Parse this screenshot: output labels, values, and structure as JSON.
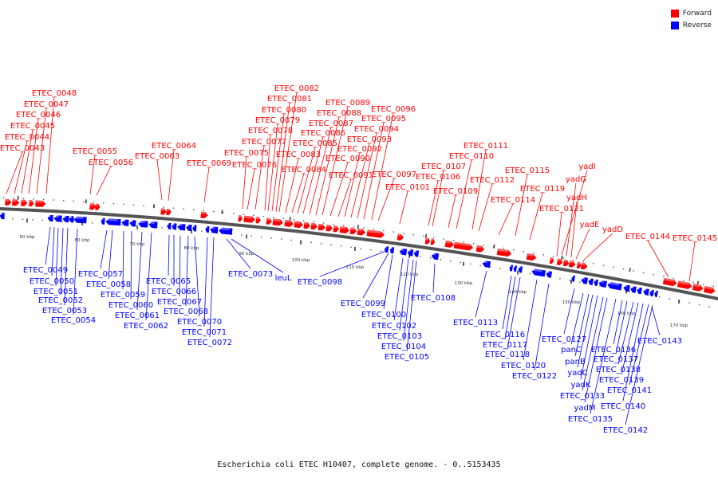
{
  "legend": {
    "forward_label": "Forward",
    "reverse_label": "Reverse",
    "forward_color": "#ff0000",
    "reverse_color": "#0000ff"
  },
  "caption": "Escherichia coli ETEC H10407, complete genome. - 0..5153435",
  "scale_marks": [
    {
      "label": "50 kbp"
    },
    {
      "label": "60 kbp"
    },
    {
      "label": "70 kbp"
    },
    {
      "label": "80 kbp"
    },
    {
      "label": "90 kbp"
    },
    {
      "label": "100 kbp"
    },
    {
      "label": "110 kbp"
    },
    {
      "label": "120 kbp"
    },
    {
      "label": "130 kbp"
    },
    {
      "label": "140 kbp"
    },
    {
      "label": "150 kbp"
    },
    {
      "label": "160 kbp"
    },
    {
      "label": "170 kbp"
    }
  ],
  "genes": [
    {
      "name": "ETEC_0043",
      "strand": "forward"
    },
    {
      "name": "ETEC_0044",
      "strand": "forward"
    },
    {
      "name": "ETEC_0045",
      "strand": "forward"
    },
    {
      "name": "ETEC_0046",
      "strand": "forward"
    },
    {
      "name": "ETEC_0047",
      "strand": "forward"
    },
    {
      "name": "ETEC_0048",
      "strand": "forward"
    },
    {
      "name": "ETEC_0049",
      "strand": "reverse"
    },
    {
      "name": "ETEC_0050",
      "strand": "reverse"
    },
    {
      "name": "ETEC_0051",
      "strand": "reverse"
    },
    {
      "name": "ETEC_0052",
      "strand": "reverse"
    },
    {
      "name": "ETEC_0053",
      "strand": "reverse"
    },
    {
      "name": "ETEC_0054",
      "strand": "reverse"
    },
    {
      "name": "ETEC_0055",
      "strand": "forward"
    },
    {
      "name": "ETEC_0056",
      "strand": "forward"
    },
    {
      "name": "ETEC_0057",
      "strand": "reverse"
    },
    {
      "name": "ETEC_0058",
      "strand": "reverse"
    },
    {
      "name": "ETEC_0059",
      "strand": "reverse"
    },
    {
      "name": "ETEC_0060",
      "strand": "reverse"
    },
    {
      "name": "ETEC_0061",
      "strand": "reverse"
    },
    {
      "name": "ETEC_0062",
      "strand": "reverse"
    },
    {
      "name": "ETEC_0063",
      "strand": "forward"
    },
    {
      "name": "ETEC_0064",
      "strand": "forward"
    },
    {
      "name": "ETEC_0065",
      "strand": "reverse"
    },
    {
      "name": "ETEC_0066",
      "strand": "reverse"
    },
    {
      "name": "ETEC_0067",
      "strand": "reverse"
    },
    {
      "name": "ETEC_0068",
      "strand": "reverse"
    },
    {
      "name": "ETEC_0069",
      "strand": "forward"
    },
    {
      "name": "ETEC_0070",
      "strand": "reverse"
    },
    {
      "name": "ETEC_0071",
      "strand": "reverse"
    },
    {
      "name": "ETEC_0072",
      "strand": "reverse"
    },
    {
      "name": "ETEC_0073",
      "strand": "reverse"
    },
    {
      "name": "leuL",
      "strand": "reverse"
    },
    {
      "name": "ETEC_0075",
      "strand": "forward"
    },
    {
      "name": "ETEC_0076",
      "strand": "forward"
    },
    {
      "name": "ETEC_0077",
      "strand": "forward"
    },
    {
      "name": "ETEC_0078",
      "strand": "forward"
    },
    {
      "name": "ETEC_0079",
      "strand": "forward"
    },
    {
      "name": "ETEC_0080",
      "strand": "forward"
    },
    {
      "name": "ETEC_0081",
      "strand": "forward"
    },
    {
      "name": "ETEC_0082",
      "strand": "forward"
    },
    {
      "name": "ETEC_0083",
      "strand": "forward"
    },
    {
      "name": "ETEC_0084",
      "strand": "forward"
    },
    {
      "name": "ETEC_0085",
      "strand": "forward"
    },
    {
      "name": "ETEC_0086",
      "strand": "forward"
    },
    {
      "name": "ETEC_0087",
      "strand": "forward"
    },
    {
      "name": "ETEC_0088",
      "strand": "forward"
    },
    {
      "name": "ETEC_0089",
      "strand": "forward"
    },
    {
      "name": "ETEC_0090",
      "strand": "forward"
    },
    {
      "name": "ETEC_0091",
      "strand": "forward"
    },
    {
      "name": "ETEC_0092",
      "strand": "forward"
    },
    {
      "name": "ETEC_0093",
      "strand": "forward"
    },
    {
      "name": "ETEC_0094",
      "strand": "forward"
    },
    {
      "name": "ETEC_0095",
      "strand": "forward"
    },
    {
      "name": "ETEC_0096",
      "strand": "forward"
    },
    {
      "name": "ETEC_0097",
      "strand": "forward"
    },
    {
      "name": "ETEC_0098",
      "strand": "reverse"
    },
    {
      "name": "ETEC_0099",
      "strand": "reverse"
    },
    {
      "name": "ETEC_0100",
      "strand": "reverse"
    },
    {
      "name": "ETEC_0101",
      "strand": "forward"
    },
    {
      "name": "ETEC_0102",
      "strand": "reverse"
    },
    {
      "name": "ETEC_0103",
      "strand": "reverse"
    },
    {
      "name": "ETEC_0104",
      "strand": "reverse"
    },
    {
      "name": "ETEC_0105",
      "strand": "reverse"
    },
    {
      "name": "ETEC_0106",
      "strand": "forward"
    },
    {
      "name": "ETEC_0107",
      "strand": "forward"
    },
    {
      "name": "ETEC_0108",
      "strand": "reverse"
    },
    {
      "name": "ETEC_0109",
      "strand": "forward"
    },
    {
      "name": "ETEC_0110",
      "strand": "forward"
    },
    {
      "name": "ETEC_0111",
      "strand": "forward"
    },
    {
      "name": "ETEC_0112",
      "strand": "forward"
    },
    {
      "name": "ETEC_0113",
      "strand": "reverse"
    },
    {
      "name": "ETEC_0114",
      "strand": "forward"
    },
    {
      "name": "ETEC_0115",
      "strand": "forward"
    },
    {
      "name": "ETEC_0116",
      "strand": "reverse"
    },
    {
      "name": "ETEC_0117",
      "strand": "reverse"
    },
    {
      "name": "ETEC_0118",
      "strand": "reverse"
    },
    {
      "name": "ETEC_0119",
      "strand": "forward"
    },
    {
      "name": "ETEC_0120",
      "strand": "reverse"
    },
    {
      "name": "ETEC_0121",
      "strand": "forward"
    },
    {
      "name": "ETEC_0122",
      "strand": "reverse"
    },
    {
      "name": "yadI",
      "strand": "forward"
    },
    {
      "name": "yadG",
      "strand": "forward"
    },
    {
      "name": "yadH",
      "strand": "forward"
    },
    {
      "name": "yadE",
      "strand": "forward"
    },
    {
      "name": "yadD",
      "strand": "forward"
    },
    {
      "name": "ETEC_0127",
      "strand": "reverse"
    },
    {
      "name": "panC",
      "strand": "reverse"
    },
    {
      "name": "panB",
      "strand": "reverse"
    },
    {
      "name": "yadC",
      "strand": "reverse"
    },
    {
      "name": "yadK",
      "strand": "reverse"
    },
    {
      "name": "yadM",
      "strand": "reverse"
    },
    {
      "name": "ETEC_0133",
      "strand": "reverse"
    },
    {
      "name": "ETEC_0135",
      "strand": "reverse"
    },
    {
      "name": "ETEC_0136",
      "strand": "reverse"
    },
    {
      "name": "ETEC_0137",
      "strand": "reverse"
    },
    {
      "name": "ETEC_0138",
      "strand": "reverse"
    },
    {
      "name": "ETEC_0139",
      "strand": "reverse"
    },
    {
      "name": "ETEC_0140",
      "strand": "reverse"
    },
    {
      "name": "ETEC_0141",
      "strand": "reverse"
    },
    {
      "name": "ETEC_0142",
      "strand": "reverse"
    },
    {
      "name": "ETEC_0143",
      "strand": "reverse"
    },
    {
      "name": "ETEC_0144",
      "strand": "forward"
    },
    {
      "name": "ETEC_0145",
      "strand": "forward"
    }
  ]
}
